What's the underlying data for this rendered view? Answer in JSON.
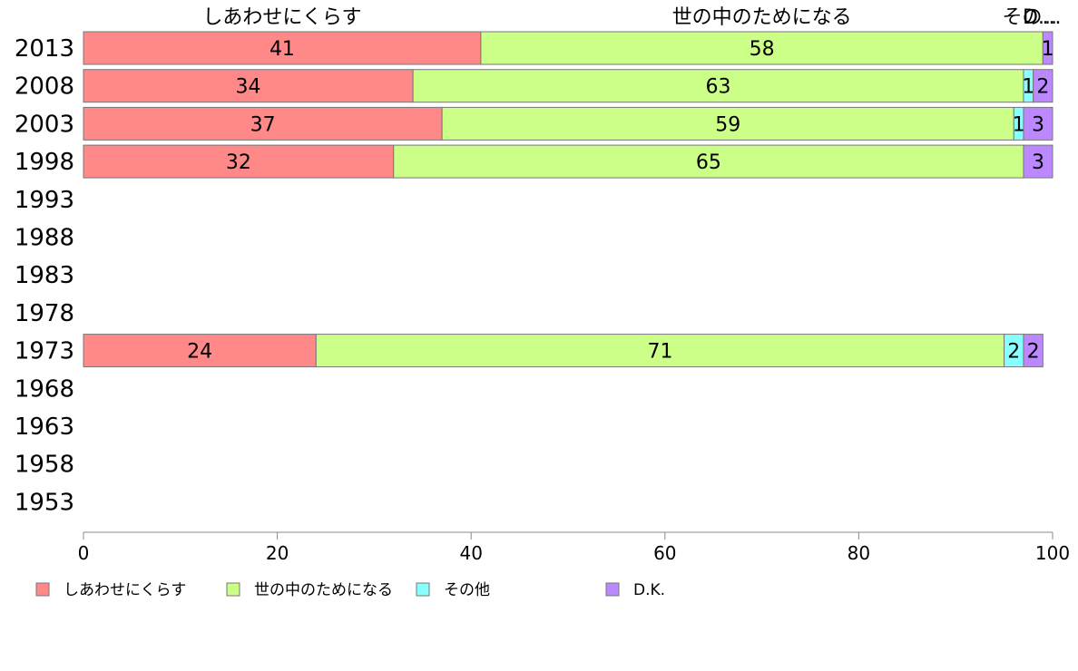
{
  "chart_data": {
    "type": "bar",
    "orientation": "horizontal",
    "stacked": true,
    "categories": [
      "2013",
      "2008",
      "2003",
      "1998",
      "1993",
      "1988",
      "1983",
      "1978",
      "1973",
      "1968",
      "1963",
      "1958",
      "1953"
    ],
    "series": [
      {
        "name": "しあわせにくらす",
        "color": "#ff8888",
        "values": [
          41,
          34,
          37,
          32,
          null,
          null,
          null,
          null,
          24,
          null,
          null,
          null,
          null
        ]
      },
      {
        "name": "世の中のためになる",
        "color": "#ccff88",
        "values": [
          58,
          63,
          59,
          65,
          null,
          null,
          null,
          null,
          71,
          null,
          null,
          null,
          null
        ]
      },
      {
        "name": "その他",
        "color": "#88ffff",
        "values": [
          0,
          1,
          1,
          0,
          null,
          null,
          null,
          null,
          2,
          null,
          null,
          null,
          null
        ]
      },
      {
        "name": "D.K.",
        "color": "#bb88ff",
        "values": [
          1,
          2,
          3,
          3,
          null,
          null,
          null,
          null,
          2,
          null,
          null,
          null,
          null
        ]
      }
    ],
    "top_labels": [
      "しあわせにくらす",
      "世の中のためになる",
      "その...",
      "D..."
    ],
    "xlim": [
      0,
      100
    ],
    "xticks": [
      0,
      20,
      40,
      60,
      80,
      100
    ],
    "grid": false,
    "legend_placement": "bottom-left",
    "title": "",
    "xlabel": "",
    "ylabel": ""
  }
}
